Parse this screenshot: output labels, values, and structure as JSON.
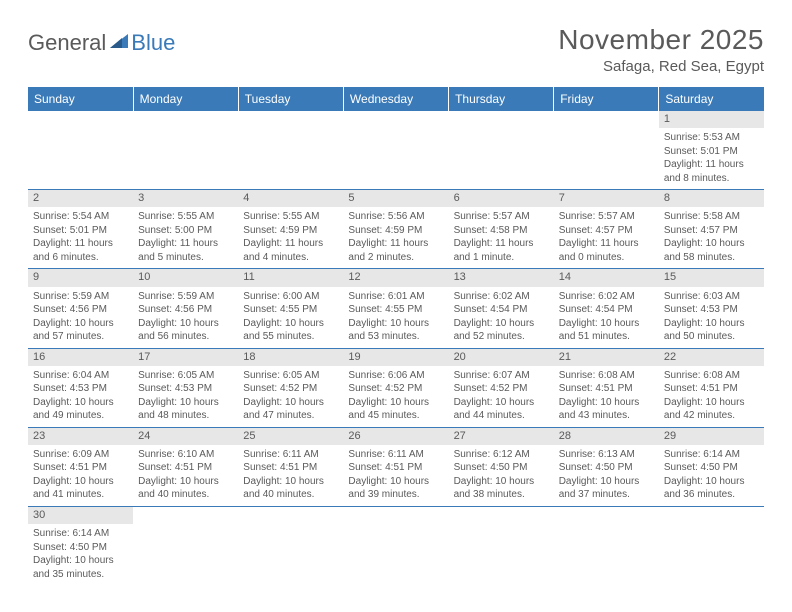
{
  "logo": {
    "text1": "General",
    "text2": "Blue"
  },
  "title": "November 2025",
  "location": "Safaga, Red Sea, Egypt",
  "colors": {
    "header_bg": "#3a7ab8",
    "header_text": "#ffffff",
    "daynum_bg": "#e7e7e7",
    "text": "#5a5a5a",
    "border": "#3a7ab8",
    "page_bg": "#ffffff"
  },
  "weekdays": [
    "Sunday",
    "Monday",
    "Tuesday",
    "Wednesday",
    "Thursday",
    "Friday",
    "Saturday"
  ],
  "calendar": [
    [
      {
        "n": "",
        "sunrise": "",
        "sunset": "",
        "daylight": ""
      },
      {
        "n": "",
        "sunrise": "",
        "sunset": "",
        "daylight": ""
      },
      {
        "n": "",
        "sunrise": "",
        "sunset": "",
        "daylight": ""
      },
      {
        "n": "",
        "sunrise": "",
        "sunset": "",
        "daylight": ""
      },
      {
        "n": "",
        "sunrise": "",
        "sunset": "",
        "daylight": ""
      },
      {
        "n": "",
        "sunrise": "",
        "sunset": "",
        "daylight": ""
      },
      {
        "n": "1",
        "sunrise": "Sunrise: 5:53 AM",
        "sunset": "Sunset: 5:01 PM",
        "daylight": "Daylight: 11 hours and 8 minutes."
      }
    ],
    [
      {
        "n": "2",
        "sunrise": "Sunrise: 5:54 AM",
        "sunset": "Sunset: 5:01 PM",
        "daylight": "Daylight: 11 hours and 6 minutes."
      },
      {
        "n": "3",
        "sunrise": "Sunrise: 5:55 AM",
        "sunset": "Sunset: 5:00 PM",
        "daylight": "Daylight: 11 hours and 5 minutes."
      },
      {
        "n": "4",
        "sunrise": "Sunrise: 5:55 AM",
        "sunset": "Sunset: 4:59 PM",
        "daylight": "Daylight: 11 hours and 4 minutes."
      },
      {
        "n": "5",
        "sunrise": "Sunrise: 5:56 AM",
        "sunset": "Sunset: 4:59 PM",
        "daylight": "Daylight: 11 hours and 2 minutes."
      },
      {
        "n": "6",
        "sunrise": "Sunrise: 5:57 AM",
        "sunset": "Sunset: 4:58 PM",
        "daylight": "Daylight: 11 hours and 1 minute."
      },
      {
        "n": "7",
        "sunrise": "Sunrise: 5:57 AM",
        "sunset": "Sunset: 4:57 PM",
        "daylight": "Daylight: 11 hours and 0 minutes."
      },
      {
        "n": "8",
        "sunrise": "Sunrise: 5:58 AM",
        "sunset": "Sunset: 4:57 PM",
        "daylight": "Daylight: 10 hours and 58 minutes."
      }
    ],
    [
      {
        "n": "9",
        "sunrise": "Sunrise: 5:59 AM",
        "sunset": "Sunset: 4:56 PM",
        "daylight": "Daylight: 10 hours and 57 minutes."
      },
      {
        "n": "10",
        "sunrise": "Sunrise: 5:59 AM",
        "sunset": "Sunset: 4:56 PM",
        "daylight": "Daylight: 10 hours and 56 minutes."
      },
      {
        "n": "11",
        "sunrise": "Sunrise: 6:00 AM",
        "sunset": "Sunset: 4:55 PM",
        "daylight": "Daylight: 10 hours and 55 minutes."
      },
      {
        "n": "12",
        "sunrise": "Sunrise: 6:01 AM",
        "sunset": "Sunset: 4:55 PM",
        "daylight": "Daylight: 10 hours and 53 minutes."
      },
      {
        "n": "13",
        "sunrise": "Sunrise: 6:02 AM",
        "sunset": "Sunset: 4:54 PM",
        "daylight": "Daylight: 10 hours and 52 minutes."
      },
      {
        "n": "14",
        "sunrise": "Sunrise: 6:02 AM",
        "sunset": "Sunset: 4:54 PM",
        "daylight": "Daylight: 10 hours and 51 minutes."
      },
      {
        "n": "15",
        "sunrise": "Sunrise: 6:03 AM",
        "sunset": "Sunset: 4:53 PM",
        "daylight": "Daylight: 10 hours and 50 minutes."
      }
    ],
    [
      {
        "n": "16",
        "sunrise": "Sunrise: 6:04 AM",
        "sunset": "Sunset: 4:53 PM",
        "daylight": "Daylight: 10 hours and 49 minutes."
      },
      {
        "n": "17",
        "sunrise": "Sunrise: 6:05 AM",
        "sunset": "Sunset: 4:53 PM",
        "daylight": "Daylight: 10 hours and 48 minutes."
      },
      {
        "n": "18",
        "sunrise": "Sunrise: 6:05 AM",
        "sunset": "Sunset: 4:52 PM",
        "daylight": "Daylight: 10 hours and 47 minutes."
      },
      {
        "n": "19",
        "sunrise": "Sunrise: 6:06 AM",
        "sunset": "Sunset: 4:52 PM",
        "daylight": "Daylight: 10 hours and 45 minutes."
      },
      {
        "n": "20",
        "sunrise": "Sunrise: 6:07 AM",
        "sunset": "Sunset: 4:52 PM",
        "daylight": "Daylight: 10 hours and 44 minutes."
      },
      {
        "n": "21",
        "sunrise": "Sunrise: 6:08 AM",
        "sunset": "Sunset: 4:51 PM",
        "daylight": "Daylight: 10 hours and 43 minutes."
      },
      {
        "n": "22",
        "sunrise": "Sunrise: 6:08 AM",
        "sunset": "Sunset: 4:51 PM",
        "daylight": "Daylight: 10 hours and 42 minutes."
      }
    ],
    [
      {
        "n": "23",
        "sunrise": "Sunrise: 6:09 AM",
        "sunset": "Sunset: 4:51 PM",
        "daylight": "Daylight: 10 hours and 41 minutes."
      },
      {
        "n": "24",
        "sunrise": "Sunrise: 6:10 AM",
        "sunset": "Sunset: 4:51 PM",
        "daylight": "Daylight: 10 hours and 40 minutes."
      },
      {
        "n": "25",
        "sunrise": "Sunrise: 6:11 AM",
        "sunset": "Sunset: 4:51 PM",
        "daylight": "Daylight: 10 hours and 40 minutes."
      },
      {
        "n": "26",
        "sunrise": "Sunrise: 6:11 AM",
        "sunset": "Sunset: 4:51 PM",
        "daylight": "Daylight: 10 hours and 39 minutes."
      },
      {
        "n": "27",
        "sunrise": "Sunrise: 6:12 AM",
        "sunset": "Sunset: 4:50 PM",
        "daylight": "Daylight: 10 hours and 38 minutes."
      },
      {
        "n": "28",
        "sunrise": "Sunrise: 6:13 AM",
        "sunset": "Sunset: 4:50 PM",
        "daylight": "Daylight: 10 hours and 37 minutes."
      },
      {
        "n": "29",
        "sunrise": "Sunrise: 6:14 AM",
        "sunset": "Sunset: 4:50 PM",
        "daylight": "Daylight: 10 hours and 36 minutes."
      }
    ],
    [
      {
        "n": "30",
        "sunrise": "Sunrise: 6:14 AM",
        "sunset": "Sunset: 4:50 PM",
        "daylight": "Daylight: 10 hours and 35 minutes."
      },
      {
        "n": "",
        "sunrise": "",
        "sunset": "",
        "daylight": ""
      },
      {
        "n": "",
        "sunrise": "",
        "sunset": "",
        "daylight": ""
      },
      {
        "n": "",
        "sunrise": "",
        "sunset": "",
        "daylight": ""
      },
      {
        "n": "",
        "sunrise": "",
        "sunset": "",
        "daylight": ""
      },
      {
        "n": "",
        "sunrise": "",
        "sunset": "",
        "daylight": ""
      },
      {
        "n": "",
        "sunrise": "",
        "sunset": "",
        "daylight": ""
      }
    ]
  ]
}
